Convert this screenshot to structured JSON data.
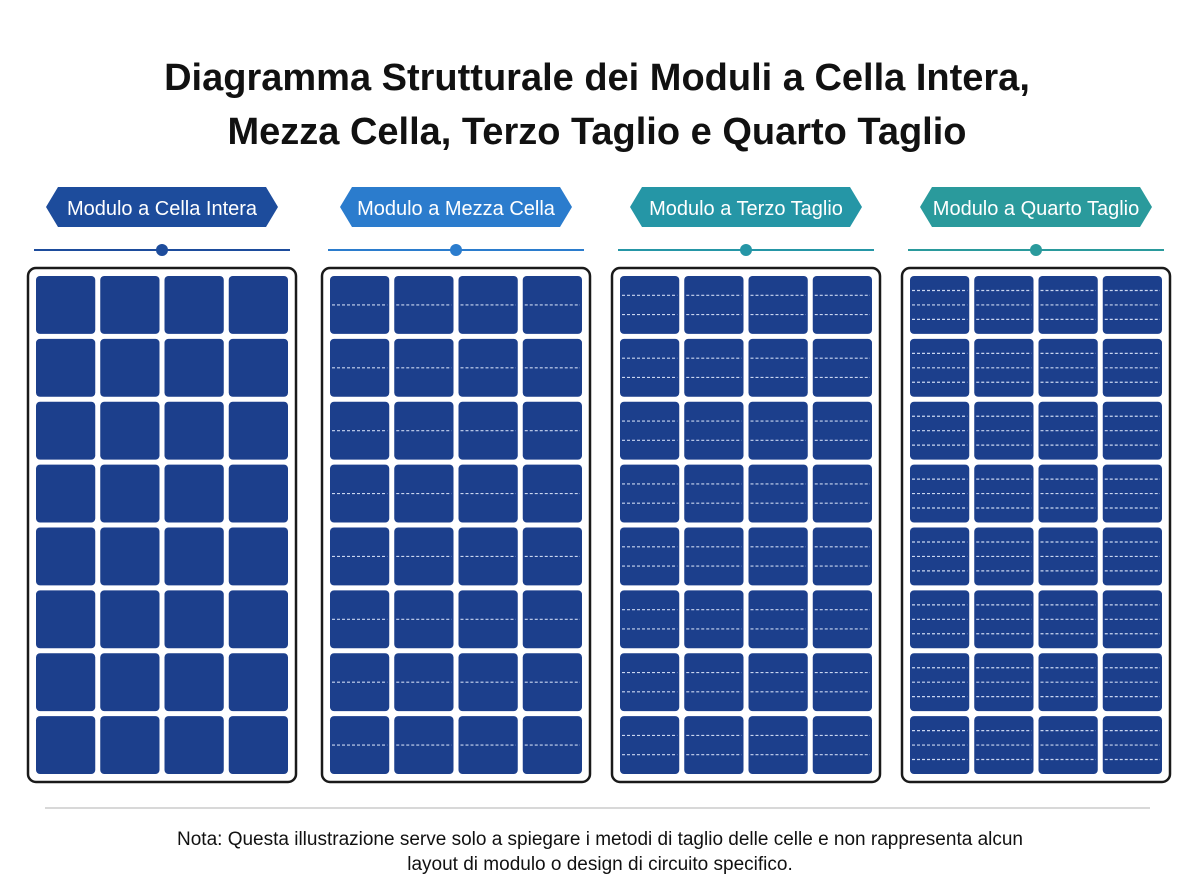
{
  "title": [
    "Diagramma Strutturale dei Moduli a Cella Intera,",
    "Mezza Cella, Terzo Taglio e Quarto Taglio"
  ],
  "panels": [
    {
      "label": "Modulo a Cella Intera"
    },
    {
      "label": "Modulo a Mezza Cella"
    },
    {
      "label": "Modulo a Terzo Taglio"
    },
    {
      "label": "Modulo a Quarto Taglio"
    }
  ],
  "note": [
    "Nota: Questa illustrazione serve solo a spiegare i metodi di taglio delle celle e non rappresenta alcun",
    "layout di modulo o design di circuito specifico."
  ]
}
